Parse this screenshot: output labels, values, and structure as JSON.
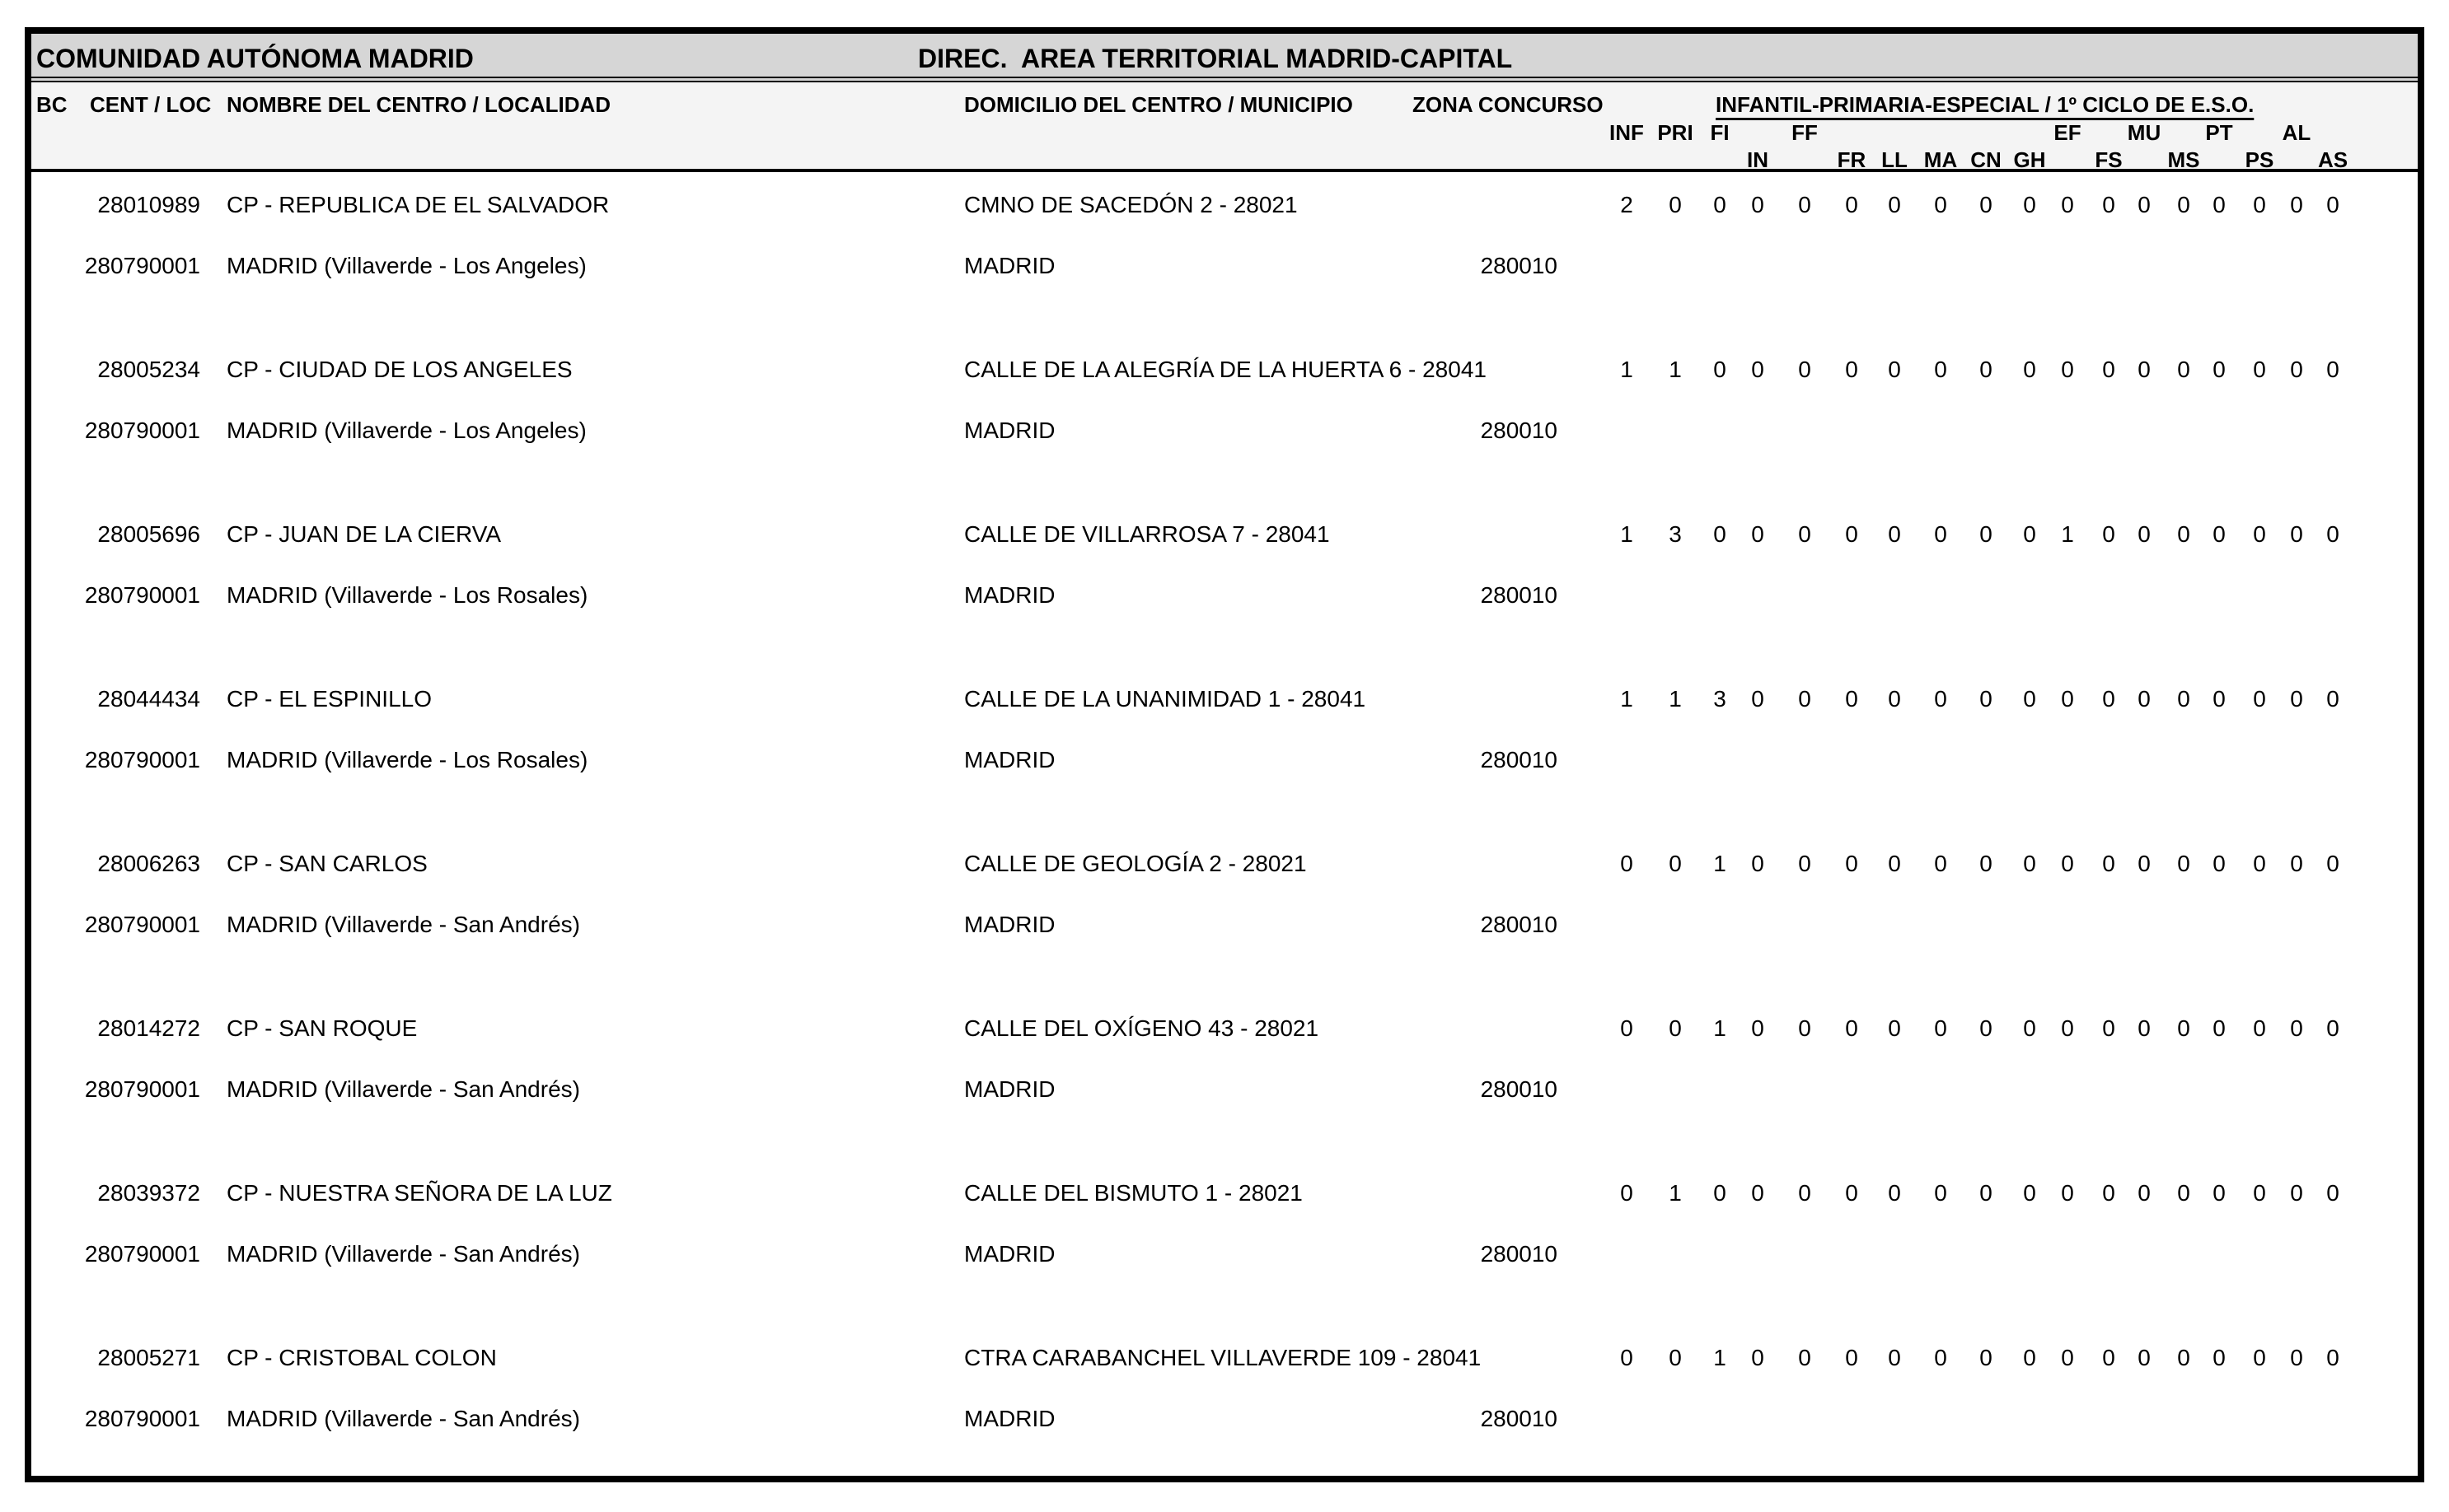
{
  "page": {
    "title_left": "COMUNIDAD AUTÓNOMA MADRID",
    "title_right": "DIREC.  AREA TERRITORIAL MADRID-CAPITAL"
  },
  "colors": {
    "title_band": "#d6d6d6",
    "header_band": "#f4f4f4",
    "border": "#000000"
  },
  "table": {
    "col_bc": "BC",
    "col_cent_loc": "CENT / LOC",
    "col_nombre": "NOMBRE DEL CENTRO / LOCALIDAD",
    "col_domicilio": "DOMICILIO DEL CENTRO / MUNICIPIO",
    "col_zona": "ZONA CONCURSO",
    "group_header": "INFANTIL-PRIMARIA-ESPECIAL / 1º CICLO DE E.S.O.",
    "subcolumns": [
      {
        "label": "INF",
        "row": 1
      },
      {
        "label": "PRI",
        "row": 1
      },
      {
        "label": "FI",
        "row": 1
      },
      {
        "label": "IN",
        "row": 2
      },
      {
        "label": "FF",
        "row": 1
      },
      {
        "label": "FR",
        "row": 2
      },
      {
        "label": "LL",
        "row": 2
      },
      {
        "label": "MA",
        "row": 2
      },
      {
        "label": "CN",
        "row": 2
      },
      {
        "label": "GH",
        "row": 2
      },
      {
        "label": "EF",
        "row": 1
      },
      {
        "label": "FS",
        "row": 2
      },
      {
        "label": "MU",
        "row": 1
      },
      {
        "label": "MS",
        "row": 2
      },
      {
        "label": "PT",
        "row": 1
      },
      {
        "label": "PS",
        "row": 2
      },
      {
        "label": "AL",
        "row": 1
      },
      {
        "label": "AS",
        "row": 2
      }
    ],
    "rows": [
      {
        "cent": "28010989",
        "nombre": "CP - REPUBLICA DE EL SALVADOR",
        "domicilio": "CMNO DE SACEDÓN 2 - 28021",
        "loc": "280790001",
        "localidad": "MADRID (Villaverde - Los Angeles)",
        "municipio": "MADRID",
        "zona": "280010",
        "values": [
          2,
          0,
          0,
          0,
          0,
          0,
          0,
          0,
          0,
          0,
          0,
          0,
          0,
          0,
          0,
          0,
          0,
          0
        ]
      },
      {
        "cent": "28005234",
        "nombre": "CP - CIUDAD DE LOS ANGELES",
        "domicilio": "CALLE DE LA ALEGRÍA DE LA HUERTA 6 - 28041",
        "loc": "280790001",
        "localidad": "MADRID (Villaverde - Los Angeles)",
        "municipio": "MADRID",
        "zona": "280010",
        "values": [
          1,
          1,
          0,
          0,
          0,
          0,
          0,
          0,
          0,
          0,
          0,
          0,
          0,
          0,
          0,
          0,
          0,
          0
        ]
      },
      {
        "cent": "28005696",
        "nombre": "CP - JUAN DE LA CIERVA",
        "domicilio": "CALLE DE VILLARROSA 7 - 28041",
        "loc": "280790001",
        "localidad": "MADRID (Villaverde - Los Rosales)",
        "municipio": "MADRID",
        "zona": "280010",
        "values": [
          1,
          3,
          0,
          0,
          0,
          0,
          0,
          0,
          0,
          0,
          1,
          0,
          0,
          0,
          0,
          0,
          0,
          0
        ]
      },
      {
        "cent": "28044434",
        "nombre": "CP - EL ESPINILLO",
        "domicilio": "CALLE DE LA UNANIMIDAD 1 - 28041",
        "loc": "280790001",
        "localidad": "MADRID (Villaverde - Los Rosales)",
        "municipio": "MADRID",
        "zona": "280010",
        "values": [
          1,
          1,
          3,
          0,
          0,
          0,
          0,
          0,
          0,
          0,
          0,
          0,
          0,
          0,
          0,
          0,
          0,
          0
        ]
      },
      {
        "cent": "28006263",
        "nombre": "CP - SAN CARLOS",
        "domicilio": "CALLE DE GEOLOGÍA 2 - 28021",
        "loc": "280790001",
        "localidad": "MADRID (Villaverde - San Andrés)",
        "municipio": "MADRID",
        "zona": "280010",
        "values": [
          0,
          0,
          1,
          0,
          0,
          0,
          0,
          0,
          0,
          0,
          0,
          0,
          0,
          0,
          0,
          0,
          0,
          0
        ]
      },
      {
        "cent": "28014272",
        "nombre": "CP - SAN ROQUE",
        "domicilio": "CALLE DEL OXÍGENO 43 - 28021",
        "loc": "280790001",
        "localidad": "MADRID (Villaverde - San Andrés)",
        "municipio": "MADRID",
        "zona": "280010",
        "values": [
          0,
          0,
          1,
          0,
          0,
          0,
          0,
          0,
          0,
          0,
          0,
          0,
          0,
          0,
          0,
          0,
          0,
          0
        ]
      },
      {
        "cent": "28039372",
        "nombre": "CP - NUESTRA SEÑORA DE LA LUZ",
        "domicilio": "CALLE DEL BISMUTO 1 - 28021",
        "loc": "280790001",
        "localidad": "MADRID (Villaverde - San Andrés)",
        "municipio": "MADRID",
        "zona": "280010",
        "values": [
          0,
          1,
          0,
          0,
          0,
          0,
          0,
          0,
          0,
          0,
          0,
          0,
          0,
          0,
          0,
          0,
          0,
          0
        ]
      },
      {
        "cent": "28005271",
        "nombre": "CP - CRISTOBAL COLON",
        "domicilio": "CTRA CARABANCHEL VILLAVERDE 109 - 28041",
        "loc": "280790001",
        "localidad": "MADRID (Villaverde - San Andrés)",
        "municipio": "MADRID",
        "zona": "280010",
        "values": [
          0,
          0,
          1,
          0,
          0,
          0,
          0,
          0,
          0,
          0,
          0,
          0,
          0,
          0,
          0,
          0,
          0,
          0
        ]
      }
    ]
  }
}
